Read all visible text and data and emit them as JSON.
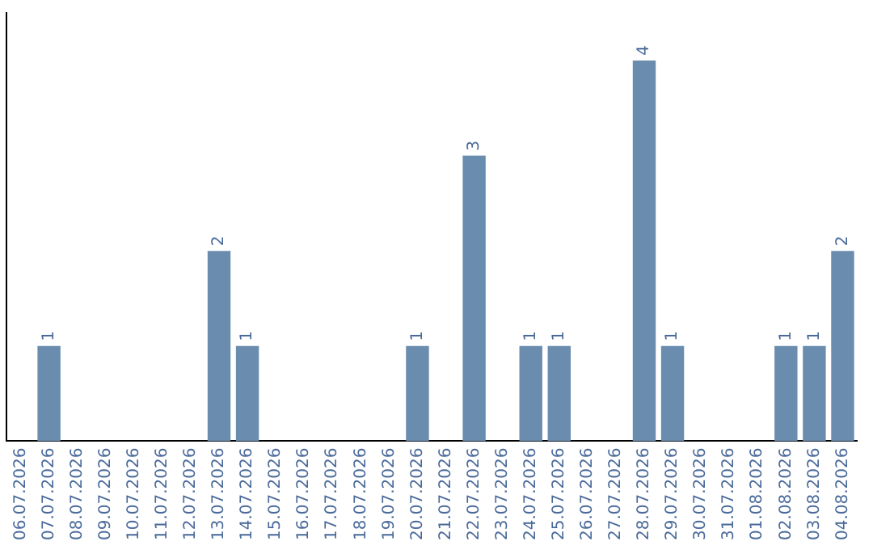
{
  "chart_data": {
    "type": "bar",
    "categories": [
      "06.07.2026",
      "07.07.2026",
      "08.07.2026",
      "09.07.2026",
      "10.07.2026",
      "11.07.2026",
      "12.07.2026",
      "13.07.2026",
      "14.07.2026",
      "15.07.2026",
      "16.07.2026",
      "17.07.2026",
      "18.07.2026",
      "19.07.2026",
      "20.07.2026",
      "21.07.2026",
      "22.07.2026",
      "23.07.2026",
      "24.07.2026",
      "25.07.2026",
      "26.07.2026",
      "27.07.2026",
      "28.07.2026",
      "29.07.2026",
      "30.07.2026",
      "31.07.2026",
      "01.08.2026",
      "02.08.2026",
      "03.08.2026",
      "04.08.2026"
    ],
    "values": [
      0,
      1,
      0,
      0,
      0,
      0,
      0,
      2,
      1,
      0,
      0,
      0,
      0,
      0,
      1,
      0,
      3,
      0,
      1,
      1,
      0,
      0,
      4,
      1,
      0,
      0,
      0,
      1,
      1,
      2
    ],
    "value_labels": [
      null,
      "1",
      null,
      null,
      null,
      null,
      null,
      "2",
      "1",
      null,
      null,
      null,
      null,
      null,
      "1",
      null,
      "3",
      null,
      "1",
      "1",
      null,
      null,
      "4",
      "1",
      null,
      null,
      null,
      "1",
      "1",
      "2"
    ],
    "color": "#6a8caf",
    "grid": false,
    "legend": false,
    "tick_labels": "x"
  }
}
